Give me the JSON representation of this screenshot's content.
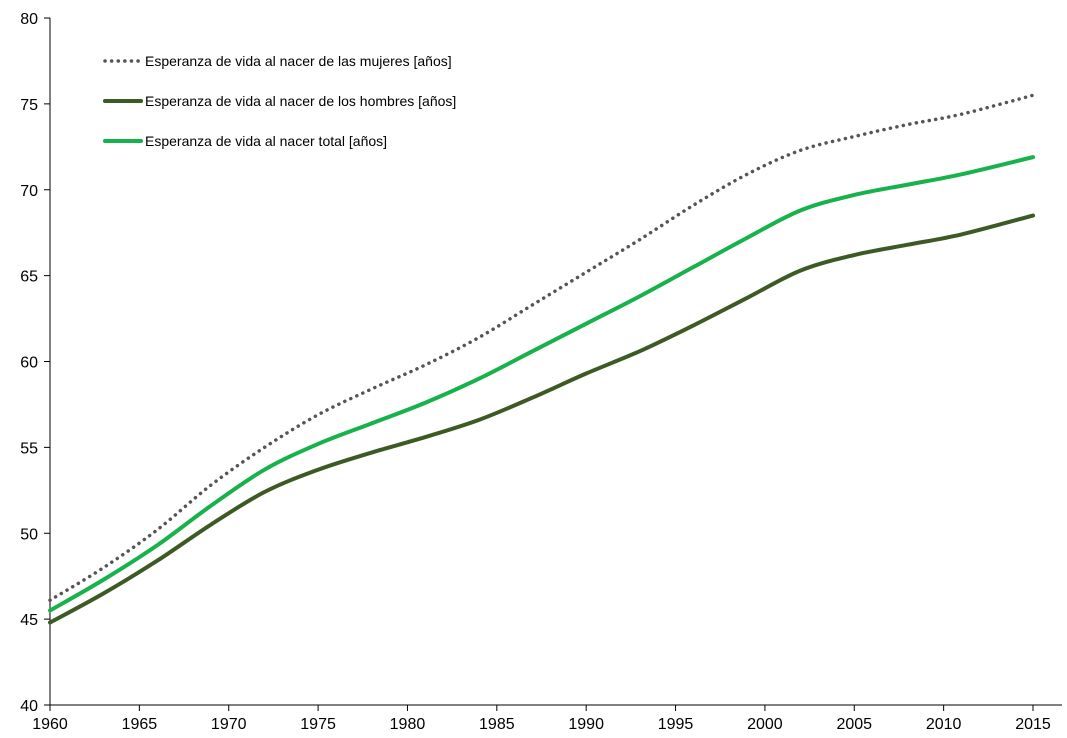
{
  "chart_data": {
    "type": "line",
    "title": "",
    "xlabel": "",
    "ylabel": "",
    "xlim": [
      1960,
      2015
    ],
    "ylim": [
      40,
      80
    ],
    "xticks": [
      1960,
      1965,
      1970,
      1975,
      1980,
      1985,
      1990,
      1995,
      2000,
      2005,
      2010,
      2015
    ],
    "yticks": [
      40,
      45,
      50,
      55,
      60,
      65,
      70,
      75,
      80
    ],
    "grid": false,
    "legend_position": "top-left",
    "x": [
      1960,
      1963,
      1966,
      1969,
      1972,
      1975,
      1978,
      1981,
      1984,
      1987,
      1990,
      1993,
      1996,
      1999,
      2002,
      2005,
      2008,
      2011,
      2015
    ],
    "series": [
      {
        "name": "Esperanza de vida al nacer de las mujeres [años]",
        "color": "#555555",
        "style": "dotted",
        "values": [
          46.1,
          48.0,
          50.2,
          52.8,
          55.0,
          56.9,
          58.4,
          59.8,
          61.4,
          63.3,
          65.2,
          67.1,
          69.1,
          70.9,
          72.3,
          73.1,
          73.8,
          74.4,
          75.5
        ]
      },
      {
        "name": "Esperanza de vida al nacer de los hombres [años]",
        "color": "#3d5a25",
        "style": "solid",
        "values": [
          44.8,
          46.5,
          48.4,
          50.5,
          52.4,
          53.7,
          54.7,
          55.6,
          56.6,
          57.9,
          59.3,
          60.6,
          62.1,
          63.7,
          65.3,
          66.2,
          66.8,
          67.4,
          68.5
        ]
      },
      {
        "name": "Esperanza de vida al nacer total [años]",
        "color": "#17b24b",
        "style": "solid",
        "values": [
          45.5,
          47.3,
          49.3,
          51.6,
          53.7,
          55.2,
          56.4,
          57.6,
          59.0,
          60.6,
          62.2,
          63.8,
          65.5,
          67.2,
          68.8,
          69.7,
          70.3,
          70.9,
          71.9
        ]
      }
    ]
  }
}
